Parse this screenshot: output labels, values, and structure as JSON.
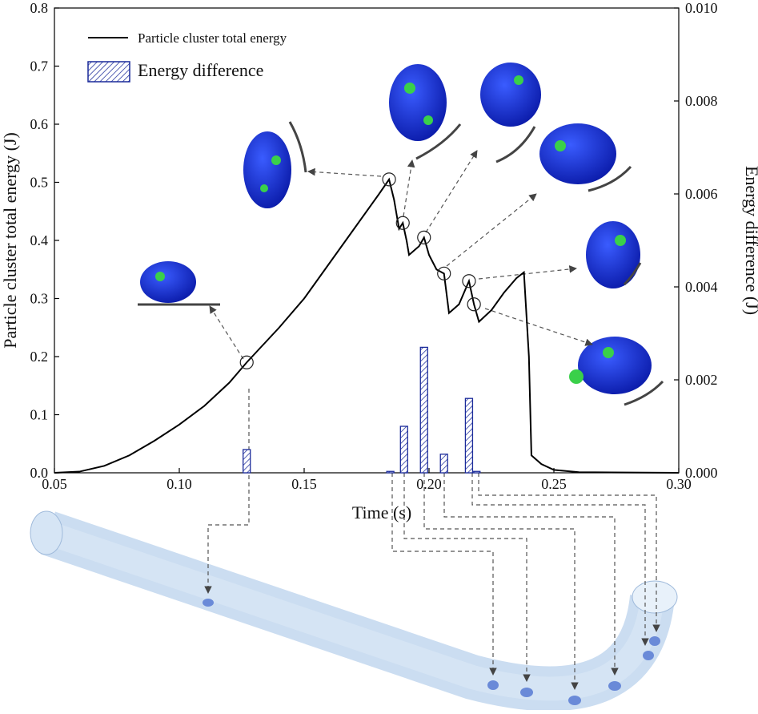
{
  "chart_data": {
    "type": "line-bar",
    "xlabel": "Time (s)",
    "ylabel": "Particle cluster total energy (J)",
    "y2label": "Energy difference (J)",
    "xlim": [
      0.05,
      0.3
    ],
    "xticks": [
      0.05,
      {
        "value": 0.1,
        "label": "0.10"
      },
      0.15,
      {
        "value": 0.2,
        "label": "0.20"
      },
      0.25,
      {
        "value": 0.3,
        "label": "0.30"
      }
    ],
    "ylim": [
      0,
      0.8
    ],
    "yticks": [
      {
        "value": 0,
        "label": "0.0"
      },
      0.1,
      0.2,
      0.3,
      0.4,
      0.5,
      0.6,
      0.7,
      0.8
    ],
    "y2lim": [
      0,
      0.01
    ],
    "y2ticks": [
      {
        "value": 0,
        "label": "0.000"
      },
      {
        "value": 0.002,
        "label": "0.002"
      },
      {
        "value": 0.004,
        "label": "0.004"
      },
      {
        "value": 0.006,
        "label": "0.006"
      },
      {
        "value": 0.008,
        "label": "0.008"
      },
      {
        "value": 0.01,
        "label": "0.010"
      }
    ],
    "series": [
      {
        "name": "Particle cluster total energy",
        "type": "line",
        "color": "#000000",
        "x": [
          0.05,
          0.06,
          0.07,
          0.08,
          0.09,
          0.1,
          0.11,
          0.12,
          0.127,
          0.14,
          0.15,
          0.16,
          0.17,
          0.18,
          0.184,
          0.186,
          0.188,
          0.1895,
          0.191,
          0.192,
          0.196,
          0.198,
          0.2,
          0.203,
          0.206,
          0.208,
          0.212,
          0.215,
          0.216,
          0.218,
          0.22,
          0.225,
          0.23,
          0.235,
          0.238,
          0.24,
          0.241,
          0.245,
          0.25,
          0.26,
          0.3
        ],
        "values": [
          0,
          0.002,
          0.012,
          0.03,
          0.055,
          0.083,
          0.115,
          0.155,
          0.19,
          0.25,
          0.3,
          0.36,
          0.42,
          0.48,
          0.505,
          0.47,
          0.42,
          0.43,
          0.4,
          0.375,
          0.39,
          0.405,
          0.375,
          0.35,
          0.343,
          0.275,
          0.29,
          0.32,
          0.33,
          0.29,
          0.26,
          0.28,
          0.31,
          0.335,
          0.345,
          0.2,
          0.03,
          0.015,
          0.005,
          0.001,
          0
        ]
      },
      {
        "name": "Energy difference",
        "type": "bar",
        "axis": "y2",
        "color": "#1a2a9a",
        "x": [
          0.127,
          0.1845,
          0.19,
          0.198,
          0.206,
          0.216,
          0.219
        ],
        "values": [
          0.0005,
          3e-05,
          0.001,
          0.0027,
          0.0004,
          0.0016,
          3e-05
        ]
      }
    ]
  }
}
